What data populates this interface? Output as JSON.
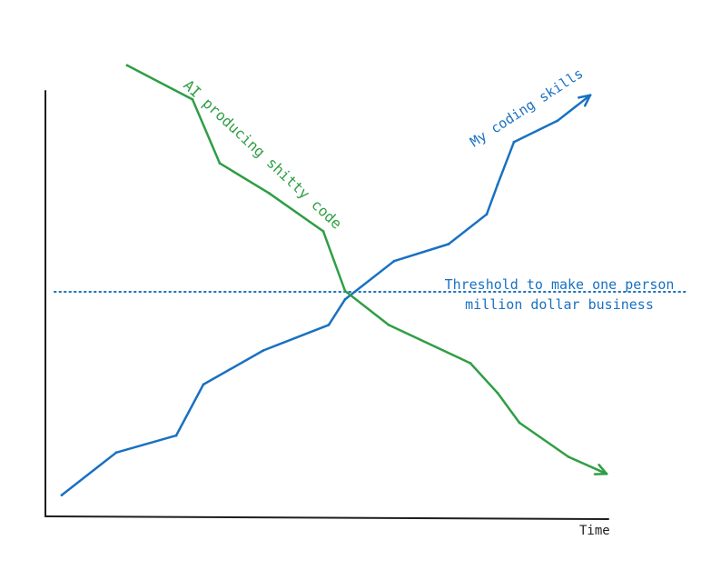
{
  "chart_data": {
    "type": "line",
    "title": "",
    "xlabel": "Time",
    "ylabel": "",
    "grid": false,
    "legend": "none",
    "threshold": {
      "label_line1": "Threshold to make one person",
      "label_line2": "million dollar business",
      "color": "#1971c2",
      "style": "dotted"
    },
    "series": [
      {
        "name": "My coding skills",
        "color": "#1971c2",
        "arrow": true,
        "points": [
          [
            0.03,
            0.05
          ],
          [
            0.13,
            0.15
          ],
          [
            0.24,
            0.19
          ],
          [
            0.29,
            0.31
          ],
          [
            0.4,
            0.39
          ],
          [
            0.52,
            0.45
          ],
          [
            0.55,
            0.51
          ],
          [
            0.64,
            0.6
          ],
          [
            0.74,
            0.64
          ],
          [
            0.81,
            0.71
          ],
          [
            0.83,
            0.78
          ],
          [
            0.86,
            0.88
          ],
          [
            0.94,
            0.93
          ],
          [
            1.0,
            0.99
          ]
        ]
      },
      {
        "name": "AI producing shitty code",
        "color": "#2f9e44",
        "arrow": true,
        "points": [
          [
            0.15,
            1.06
          ],
          [
            0.27,
            0.98
          ],
          [
            0.32,
            0.83
          ],
          [
            0.41,
            0.76
          ],
          [
            0.51,
            0.67
          ],
          [
            0.55,
            0.53
          ],
          [
            0.63,
            0.45
          ],
          [
            0.78,
            0.36
          ],
          [
            0.83,
            0.29
          ],
          [
            0.87,
            0.22
          ],
          [
            0.96,
            0.14
          ],
          [
            1.03,
            0.1
          ]
        ]
      }
    ]
  }
}
